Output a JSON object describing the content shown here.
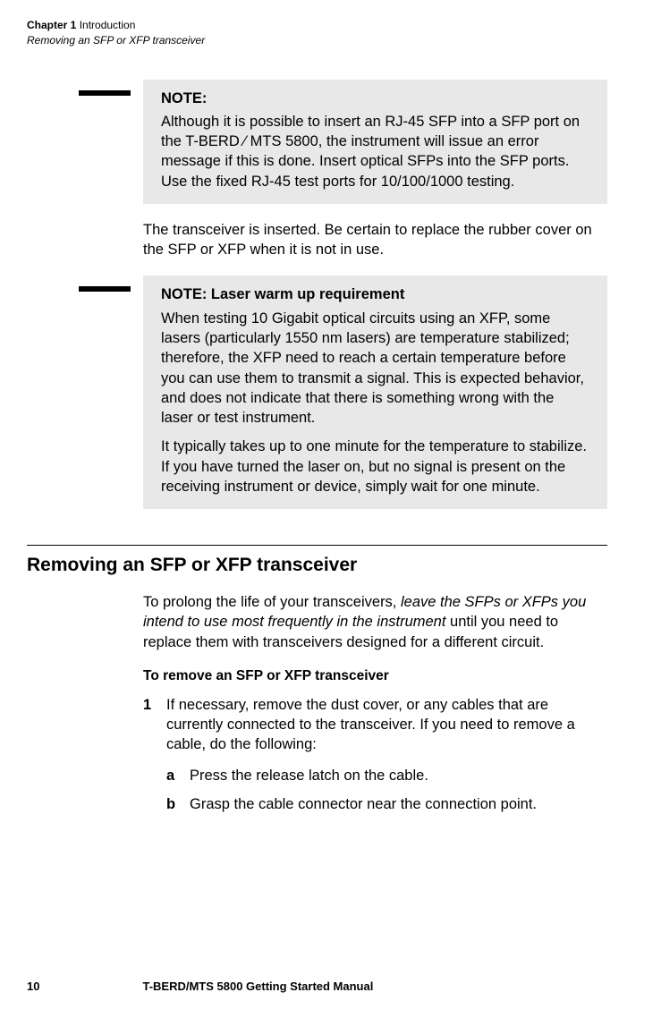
{
  "header": {
    "line1_prefix": "Chapter 1",
    "line1_rest": "  Introduction",
    "line2": "Removing an SFP or XFP transceiver"
  },
  "note1": {
    "title": "NOTE:",
    "body": "Although it is possible to insert an RJ-45 SFP into a SFP port on the T-BERD ⁄ MTS 5800, the instrument will issue an error message if this is done. Insert optical SFPs into the SFP ports. Use the fixed RJ-45 test ports for 10/100/1000 testing."
  },
  "para1": "The transceiver is inserted. Be certain to replace the rubber cover on the SFP or XFP when it is not in use.",
  "note2": {
    "title": "NOTE: Laser warm up requirement",
    "p1": "When testing 10 Gigabit optical circuits using an XFP, some lasers (particularly 1550 nm lasers) are temperature stabilized; therefore, the XFP need to reach a certain temperature before you can use them to transmit a signal. This is expected behavior, and does not indicate that there is something wrong with the laser or test instrument.",
    "p2": "It typically takes up to one minute for the temperature to stabilize. If you have turned the laser on, but no signal is present on the receiving instrument or device, simply wait for one minute."
  },
  "section": {
    "heading": "Removing an SFP or XFP transceiver",
    "para_pre": "To prolong the life of your transceivers, ",
    "para_italic": "leave the SFPs or XFPs you intend to use most frequently in the instrument",
    "para_post": " until you need to replace them with transceivers designed for a different circuit.",
    "subheading": "To remove an SFP or XFP transceiver",
    "step1_num": "1",
    "step1_text": "If necessary, remove the dust cover, or any cables that are currently connected to the transceiver. If you need to remove a cable, do the following:",
    "sub_a_label": "a",
    "sub_a_text": "Press the release latch on the cable.",
    "sub_b_label": "b",
    "sub_b_text": "Grasp the cable connector near the connection point."
  },
  "footer": {
    "page": "10",
    "title": "T-BERD/MTS 5800 Getting Started Manual"
  }
}
